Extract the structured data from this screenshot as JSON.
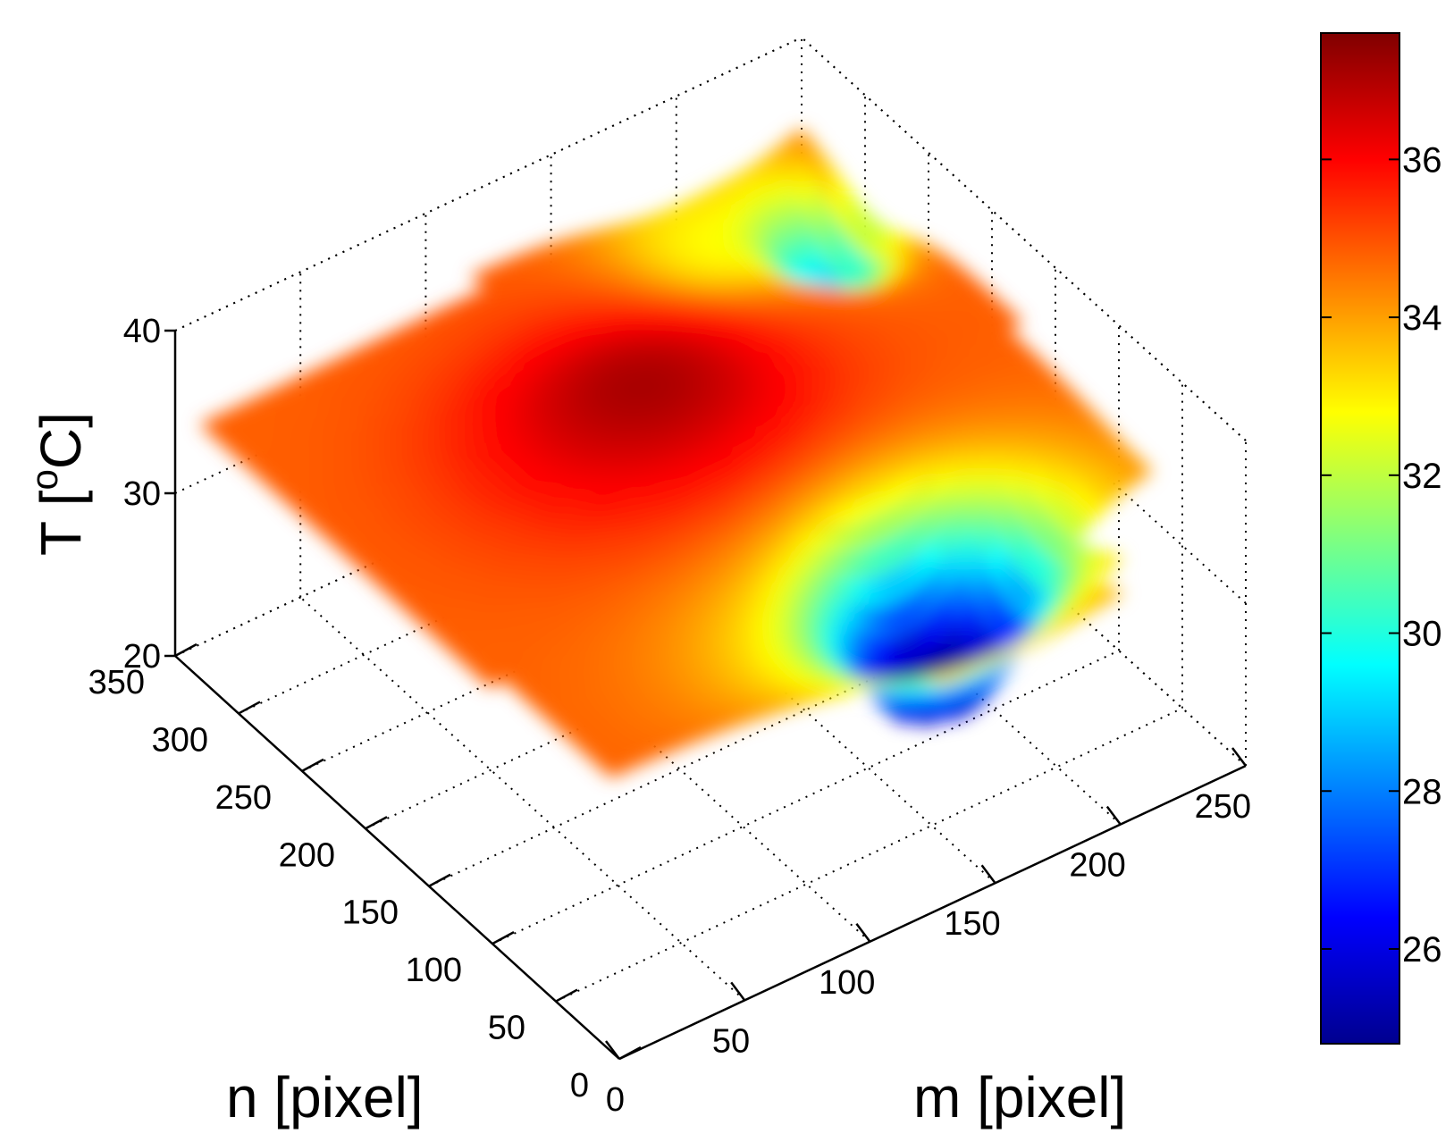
{
  "chart_data": {
    "type": "surface3d",
    "title": "",
    "xlabel": "m [pixel]",
    "ylabel": "n [pixel]",
    "zlabel": "T [°C]",
    "zlabel_parts": {
      "base": "T [",
      "sup": "o",
      "unit": "C]"
    },
    "x_ticks": [
      "0",
      "50",
      "100",
      "150",
      "200",
      "250"
    ],
    "y_ticks": [
      "0",
      "50",
      "100",
      "150",
      "200",
      "250",
      "300",
      "350"
    ],
    "z_ticks": [
      "20",
      "30",
      "40"
    ],
    "xlim": [
      0,
      250
    ],
    "ylim": [
      0,
      350
    ],
    "zlim": [
      20,
      40
    ],
    "grid": true,
    "colormap": "jet",
    "colorbar": {
      "ticks": [
        "26",
        "28",
        "30",
        "32",
        "34",
        "36"
      ],
      "range": [
        24.8,
        37.6
      ],
      "placement": "right"
    },
    "surface_summary": {
      "temperature_range": [
        25,
        37.5
      ],
      "hot_region": "central dome around m 80-180, n 150-300 at about 36-37.5 °C",
      "cold_region": "pit near m 150-190, n 50-100 falling to about 25 °C",
      "cool_trench": "narrow band near m 200-250, n 250-330 at about 28-30 °C"
    }
  }
}
